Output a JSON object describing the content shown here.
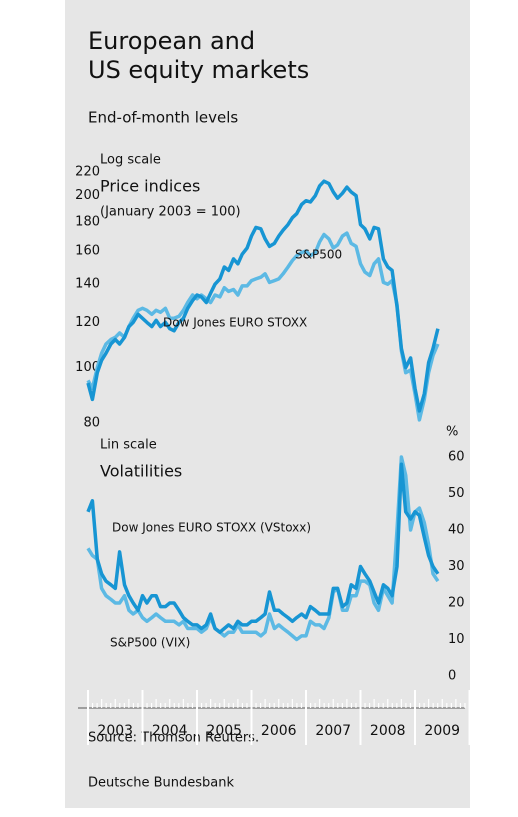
{
  "title": "European and\nUS equity markets",
  "subtitle": "End-of-month levels",
  "source": "Source: Thomson Reuters.",
  "footer": "Deutsche Bundesbank",
  "chart_data": [
    {
      "type": "line",
      "scale_label": "Log scale",
      "title": "Price indices",
      "subtitle": "(January 2003 = 100)",
      "yscale": "log",
      "y_axis_side": "left",
      "ylim": [
        80,
        230
      ],
      "yticks": [
        80,
        100,
        120,
        140,
        160,
        180,
        200,
        220
      ],
      "xlim": [
        2003,
        2010
      ],
      "grid": false,
      "x": [
        2003.0,
        2003.08,
        2003.17,
        2003.25,
        2003.33,
        2003.42,
        2003.5,
        2003.58,
        2003.67,
        2003.75,
        2003.83,
        2003.92,
        2004.0,
        2004.08,
        2004.17,
        2004.25,
        2004.33,
        2004.42,
        2004.5,
        2004.58,
        2004.67,
        2004.75,
        2004.83,
        2004.92,
        2005.0,
        2005.08,
        2005.17,
        2005.25,
        2005.33,
        2005.42,
        2005.5,
        2005.58,
        2005.67,
        2005.75,
        2005.83,
        2005.92,
        2006.0,
        2006.08,
        2006.17,
        2006.25,
        2006.33,
        2006.42,
        2006.5,
        2006.58,
        2006.67,
        2006.75,
        2006.83,
        2006.92,
        2007.0,
        2007.08,
        2007.17,
        2007.25,
        2007.33,
        2007.42,
        2007.5,
        2007.58,
        2007.67,
        2007.75,
        2007.83,
        2007.92,
        2008.0,
        2008.08,
        2008.17,
        2008.25,
        2008.33,
        2008.42,
        2008.5,
        2008.58,
        2008.67,
        2008.75,
        2008.83,
        2008.92,
        2009.0,
        2009.08,
        2009.17,
        2009.25,
        2009.33,
        2009.42
      ],
      "series": [
        {
          "name": "S&P500",
          "color": "#5cb9e4",
          "values": [
            95,
            92,
            100,
            106,
            110,
            112,
            113,
            115,
            113,
            118,
            122,
            126,
            127,
            126,
            124,
            126,
            125,
            127,
            122,
            122,
            123,
            126,
            130,
            134,
            132,
            134,
            132,
            130,
            134,
            133,
            138,
            136,
            137,
            134,
            139,
            139,
            142,
            143,
            144,
            146,
            141,
            142,
            143,
            146,
            150,
            154,
            157,
            159,
            160,
            157,
            159,
            166,
            171,
            168,
            162,
            164,
            170,
            172,
            165,
            163,
            152,
            147,
            145,
            152,
            155,
            141,
            140,
            142,
            129,
            107,
            98,
            99,
            90,
            81,
            88,
            98,
            105,
            110
          ]
        },
        {
          "name": "Dow Jones EURO STOXX",
          "color": "#1795d3",
          "values": [
            94,
            88,
            98,
            103,
            106,
            110,
            112,
            110,
            113,
            118,
            120,
            124,
            122,
            120,
            118,
            121,
            118,
            120,
            117,
            116,
            120,
            122,
            127,
            131,
            134,
            133,
            130,
            135,
            140,
            143,
            150,
            148,
            155,
            152,
            158,
            162,
            170,
            176,
            175,
            168,
            163,
            165,
            170,
            174,
            178,
            183,
            186,
            193,
            196,
            195,
            200,
            208,
            212,
            210,
            203,
            198,
            202,
            207,
            203,
            200,
            178,
            175,
            168,
            176,
            175,
            155,
            150,
            148,
            128,
            108,
            100,
            104,
            92,
            84,
            90,
            102,
            108,
            117
          ]
        }
      ]
    },
    {
      "type": "line",
      "scale_label": "Lin scale",
      "title": "Volatilities",
      "ylabel": "%",
      "yscale": "linear",
      "y_axis_side": "right",
      "ylim": [
        0,
        65
      ],
      "yticks": [
        0,
        10,
        20,
        30,
        40,
        50,
        60
      ],
      "xlim": [
        2003,
        2010
      ],
      "grid": false,
      "xticks": [
        {
          "value": 2003.5,
          "label": "2003"
        },
        {
          "value": 2004.5,
          "label": "2004"
        },
        {
          "value": 2005.5,
          "label": "2005"
        },
        {
          "value": 2006.5,
          "label": "2006"
        },
        {
          "value": 2007.5,
          "label": "2007"
        },
        {
          "value": 2008.5,
          "label": "2008"
        },
        {
          "value": 2009.5,
          "label": "2009"
        }
      ],
      "x": [
        2003.0,
        2003.08,
        2003.17,
        2003.25,
        2003.33,
        2003.42,
        2003.5,
        2003.58,
        2003.67,
        2003.75,
        2003.83,
        2003.92,
        2004.0,
        2004.08,
        2004.17,
        2004.25,
        2004.33,
        2004.42,
        2004.5,
        2004.58,
        2004.67,
        2004.75,
        2004.83,
        2004.92,
        2005.0,
        2005.08,
        2005.17,
        2005.25,
        2005.33,
        2005.42,
        2005.5,
        2005.58,
        2005.67,
        2005.75,
        2005.83,
        2005.92,
        2006.0,
        2006.08,
        2006.17,
        2006.25,
        2006.33,
        2006.42,
        2006.5,
        2006.58,
        2006.67,
        2006.75,
        2006.83,
        2006.92,
        2007.0,
        2007.08,
        2007.17,
        2007.25,
        2007.33,
        2007.42,
        2007.5,
        2007.58,
        2007.67,
        2007.75,
        2007.83,
        2007.92,
        2008.0,
        2008.08,
        2008.17,
        2008.25,
        2008.33,
        2008.42,
        2008.5,
        2008.58,
        2008.67,
        2008.75,
        2008.83,
        2008.92,
        2009.0,
        2009.08,
        2009.17,
        2009.25,
        2009.33,
        2009.42
      ],
      "series": [
        {
          "name": "S&P500 (VIX)",
          "color": "#5cb9e4",
          "values": [
            35,
            33,
            32,
            24,
            22,
            21,
            20,
            20,
            22,
            18,
            17,
            18,
            16,
            15,
            16,
            17,
            16,
            15,
            15,
            15,
            14,
            15,
            13,
            13,
            13,
            12,
            13,
            16,
            13,
            12,
            11,
            12,
            12,
            14,
            12,
            12,
            12,
            12,
            11,
            12,
            17,
            13,
            14,
            13,
            12,
            11,
            10,
            11,
            11,
            15,
            14,
            14,
            13,
            16,
            23,
            24,
            18,
            18,
            22,
            22,
            26,
            26,
            25,
            20,
            18,
            24,
            22,
            20,
            40,
            60,
            55,
            40,
            45,
            46,
            42,
            36,
            28,
            26
          ]
        },
        {
          "name": "Dow Jones EURO STOXX (VStoxx)",
          "color": "#1795d3",
          "values": [
            45,
            48,
            32,
            28,
            26,
            25,
            24,
            34,
            25,
            22,
            20,
            18,
            22,
            20,
            22,
            22,
            19,
            19,
            20,
            20,
            18,
            16,
            15,
            14,
            14,
            13,
            14,
            17,
            13,
            12,
            13,
            14,
            13,
            15,
            14,
            14,
            15,
            15,
            16,
            17,
            23,
            18,
            18,
            17,
            16,
            15,
            16,
            17,
            16,
            19,
            18,
            17,
            17,
            17,
            24,
            24,
            19,
            20,
            25,
            24,
            30,
            28,
            26,
            23,
            20,
            25,
            24,
            22,
            30,
            58,
            45,
            43,
            45,
            44,
            38,
            33,
            30,
            28
          ]
        }
      ]
    }
  ]
}
